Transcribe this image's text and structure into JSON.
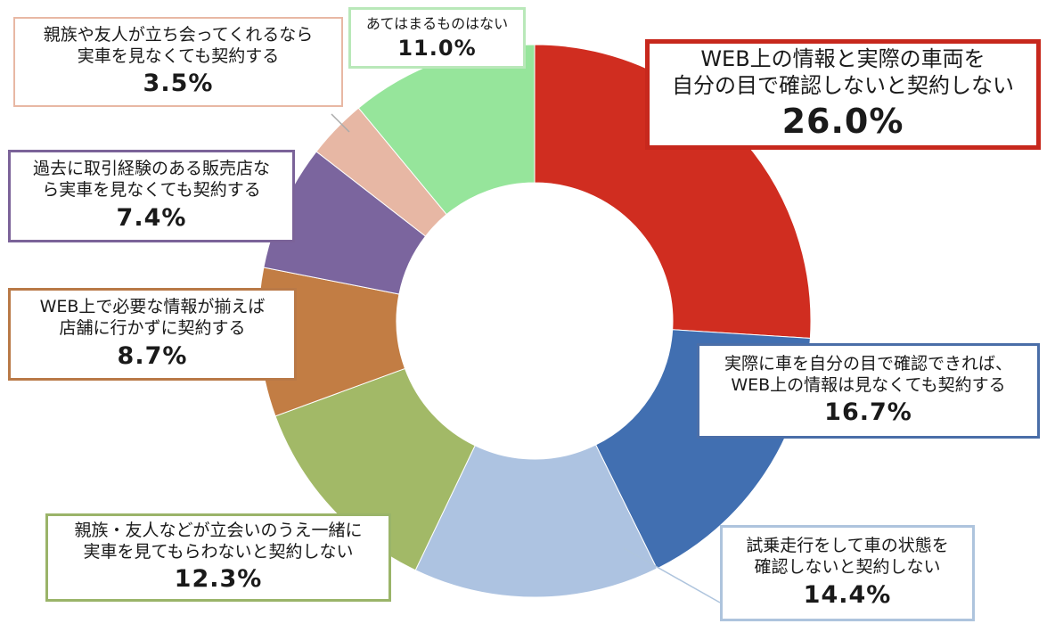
{
  "chart_data": {
    "type": "pie",
    "donut": true,
    "title": "",
    "start_angle": "12 o'clock",
    "direction": "clockwise",
    "slices": [
      {
        "label": "WEB上の情報と実際の車両を自分の目で確認しないと契約しない",
        "label_lines": [
          "WEB上の情報と実際の車両を",
          "自分の目で確認しないと契約しない"
        ],
        "value": 26.0,
        "display": "26.0%",
        "color": "#d02d20"
      },
      {
        "label": "実際に車を自分の目で確認できれば、WEB上の情報は見なくても契約する",
        "label_lines": [
          "実際に車を自分の目で確認できれば、",
          "WEB上の情報は見なくても契約する"
        ],
        "value": 16.7,
        "display": "16.7%",
        "color": "#416fb1"
      },
      {
        "label": "試乗走行をして車の状態を確認しないと契約しない",
        "label_lines": [
          "試乗走行をして車の状態を",
          "確認しないと契約しない"
        ],
        "value": 14.4,
        "display": "14.4%",
        "color": "#adc3e1"
      },
      {
        "label": "親族・友人などが立会いのうえ一緒に実車を見てもらわないと契約しない",
        "label_lines": [
          "親族・友人などが立会いのうえ一緒に",
          "実車を見てもらわないと契約しない"
        ],
        "value": 12.3,
        "display": "12.3%",
        "color": "#a2b967"
      },
      {
        "label": "WEB上で必要な情報が揃えば店舗に行かずに契約する",
        "label_lines": [
          "WEB上で必要な情報が揃えば",
          "店舗に行かずに契約する"
        ],
        "value": 8.7,
        "display": "8.7%",
        "color": "#c27d44"
      },
      {
        "label": "過去に取引経験のある販売店なら実車を見なくても契約する",
        "label_lines": [
          "過去に取引経験のある販売店な",
          "ら実車を見なくても契約する"
        ],
        "value": 7.4,
        "display": "7.4%",
        "color": "#7b659e"
      },
      {
        "label": "親族や友人が立ち会ってくれるなら実車を見なくても契約する",
        "label_lines": [
          "親族や友人が立ち会ってくれるなら",
          "実車を見なくても契約する"
        ],
        "value": 3.5,
        "display": "3.5%",
        "color": "#e7b7a4"
      },
      {
        "label": "あてはまるものはない",
        "label_lines": [
          "あてはまるものはない"
        ],
        "value": 11.0,
        "display": "11.0%",
        "color": "#96e59b"
      }
    ]
  }
}
